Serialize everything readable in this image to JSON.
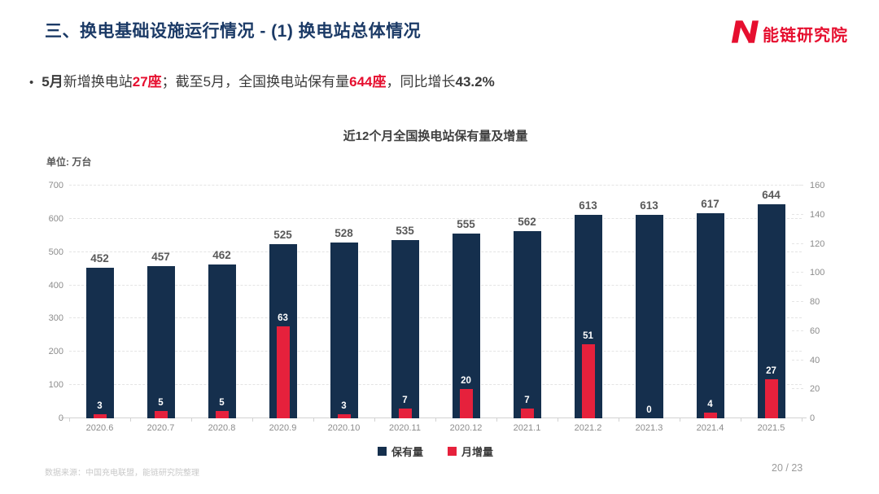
{
  "slide": {
    "title": "三、换电基础设施运行情况 - (1) 换电站总体情况",
    "page_number": "20 / 23",
    "source_note": "数据来源：中国充电联盟，能链研究院整理"
  },
  "logo": {
    "text": "能链研究院",
    "brand_color": "#E60F2F",
    "icon": "n-logo-icon"
  },
  "bullet": {
    "segments": [
      {
        "text": "5月",
        "style": "bold"
      },
      {
        "text": "新增换电站",
        "style": "normal"
      },
      {
        "text": "27座",
        "style": "red"
      },
      {
        "text": "；截至5月，全国换电站保有量",
        "style": "normal"
      },
      {
        "text": "644座",
        "style": "red"
      },
      {
        "text": "，同比增长",
        "style": "normal"
      },
      {
        "text": "43.2%",
        "style": "bold"
      }
    ]
  },
  "chart_data": {
    "type": "bar",
    "title": "近12个月全国换电站保有量及增量",
    "unit_label": "单位: 万台",
    "categories": [
      "2020.6",
      "2020.7",
      "2020.8",
      "2020.9",
      "2020.10",
      "2020.11",
      "2020.12",
      "2021.1",
      "2021.2",
      "2021.3",
      "2021.4",
      "2021.5"
    ],
    "series": [
      {
        "name": "保有量",
        "axis": "left",
        "color": "#152F4D",
        "values": [
          452,
          457,
          462,
          525,
          528,
          535,
          555,
          562,
          613,
          613,
          617,
          644
        ]
      },
      {
        "name": "月增量",
        "axis": "right",
        "color": "#E6213C",
        "values": [
          3,
          5,
          5,
          63,
          3,
          7,
          20,
          7,
          51,
          0,
          4,
          27
        ]
      }
    ],
    "left_axis": {
      "min": 0,
      "max": 700,
      "step": 100
    },
    "right_axis": {
      "min": 0,
      "max": 160,
      "step": 20
    },
    "grid": "horizontal-dashed",
    "legend_position": "bottom"
  }
}
